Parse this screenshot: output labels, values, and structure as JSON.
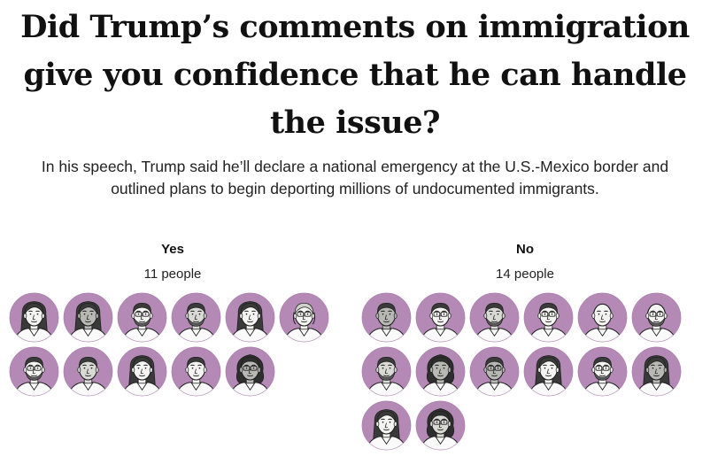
{
  "headline": "Did Trump’s comments on immigration give you confidence that he can handle the issue?",
  "dek": "In his speech, Trump said he’ll declare a national emergency at the U.S.-Mexico border and outlined plans to begin deporting millions of undocumented immigrants.",
  "colors": {
    "circle": "#b489b6",
    "skin": "#f2f2f0",
    "ink": "#1e1e1e"
  },
  "groups": {
    "yes": {
      "label": "Yes",
      "count_label": "11 people",
      "count": 11,
      "avatars": [
        {
          "hair": "long",
          "tone": "light",
          "glasses": false,
          "beard": false
        },
        {
          "hair": "long",
          "tone": "dark",
          "glasses": false,
          "beard": false
        },
        {
          "hair": "short",
          "tone": "light",
          "glasses": true,
          "beard": true
        },
        {
          "hair": "short",
          "tone": "mid",
          "glasses": false,
          "beard": true
        },
        {
          "hair": "long",
          "tone": "light",
          "glasses": false,
          "beard": false
        },
        {
          "hair": "bob",
          "tone": "light",
          "glasses": true,
          "beard": false
        },
        {
          "hair": "short",
          "tone": "light",
          "glasses": true,
          "beard": true
        },
        {
          "hair": "short",
          "tone": "mid",
          "glasses": false,
          "beard": false
        },
        {
          "hair": "long",
          "tone": "light",
          "glasses": false,
          "beard": false
        },
        {
          "hair": "short",
          "tone": "light",
          "glasses": false,
          "beard": false
        },
        {
          "hair": "curly",
          "tone": "dark",
          "glasses": true,
          "beard": false
        }
      ]
    },
    "no": {
      "label": "No",
      "count_label": "14 people",
      "count": 14,
      "avatars": [
        {
          "hair": "short",
          "tone": "dark",
          "glasses": false,
          "beard": false
        },
        {
          "hair": "short",
          "tone": "light",
          "glasses": true,
          "beard": false
        },
        {
          "hair": "short",
          "tone": "mid",
          "glasses": false,
          "beard": true
        },
        {
          "hair": "short",
          "tone": "light",
          "glasses": true,
          "beard": false
        },
        {
          "hair": "bald",
          "tone": "light",
          "glasses": false,
          "beard": false
        },
        {
          "hair": "bald",
          "tone": "light",
          "glasses": true,
          "beard": true
        },
        {
          "hair": "short",
          "tone": "mid",
          "glasses": false,
          "beard": true
        },
        {
          "hair": "curly",
          "tone": "dark",
          "glasses": false,
          "beard": false
        },
        {
          "hair": "short",
          "tone": "dark",
          "glasses": true,
          "beard": false
        },
        {
          "hair": "long",
          "tone": "light",
          "glasses": false,
          "beard": false
        },
        {
          "hair": "short",
          "tone": "light",
          "glasses": true,
          "beard": true
        },
        {
          "hair": "long",
          "tone": "dark",
          "glasses": false,
          "beard": false
        },
        {
          "hair": "long",
          "tone": "light",
          "glasses": false,
          "beard": false
        },
        {
          "hair": "curly",
          "tone": "mid",
          "glasses": true,
          "beard": false
        }
      ]
    }
  }
}
